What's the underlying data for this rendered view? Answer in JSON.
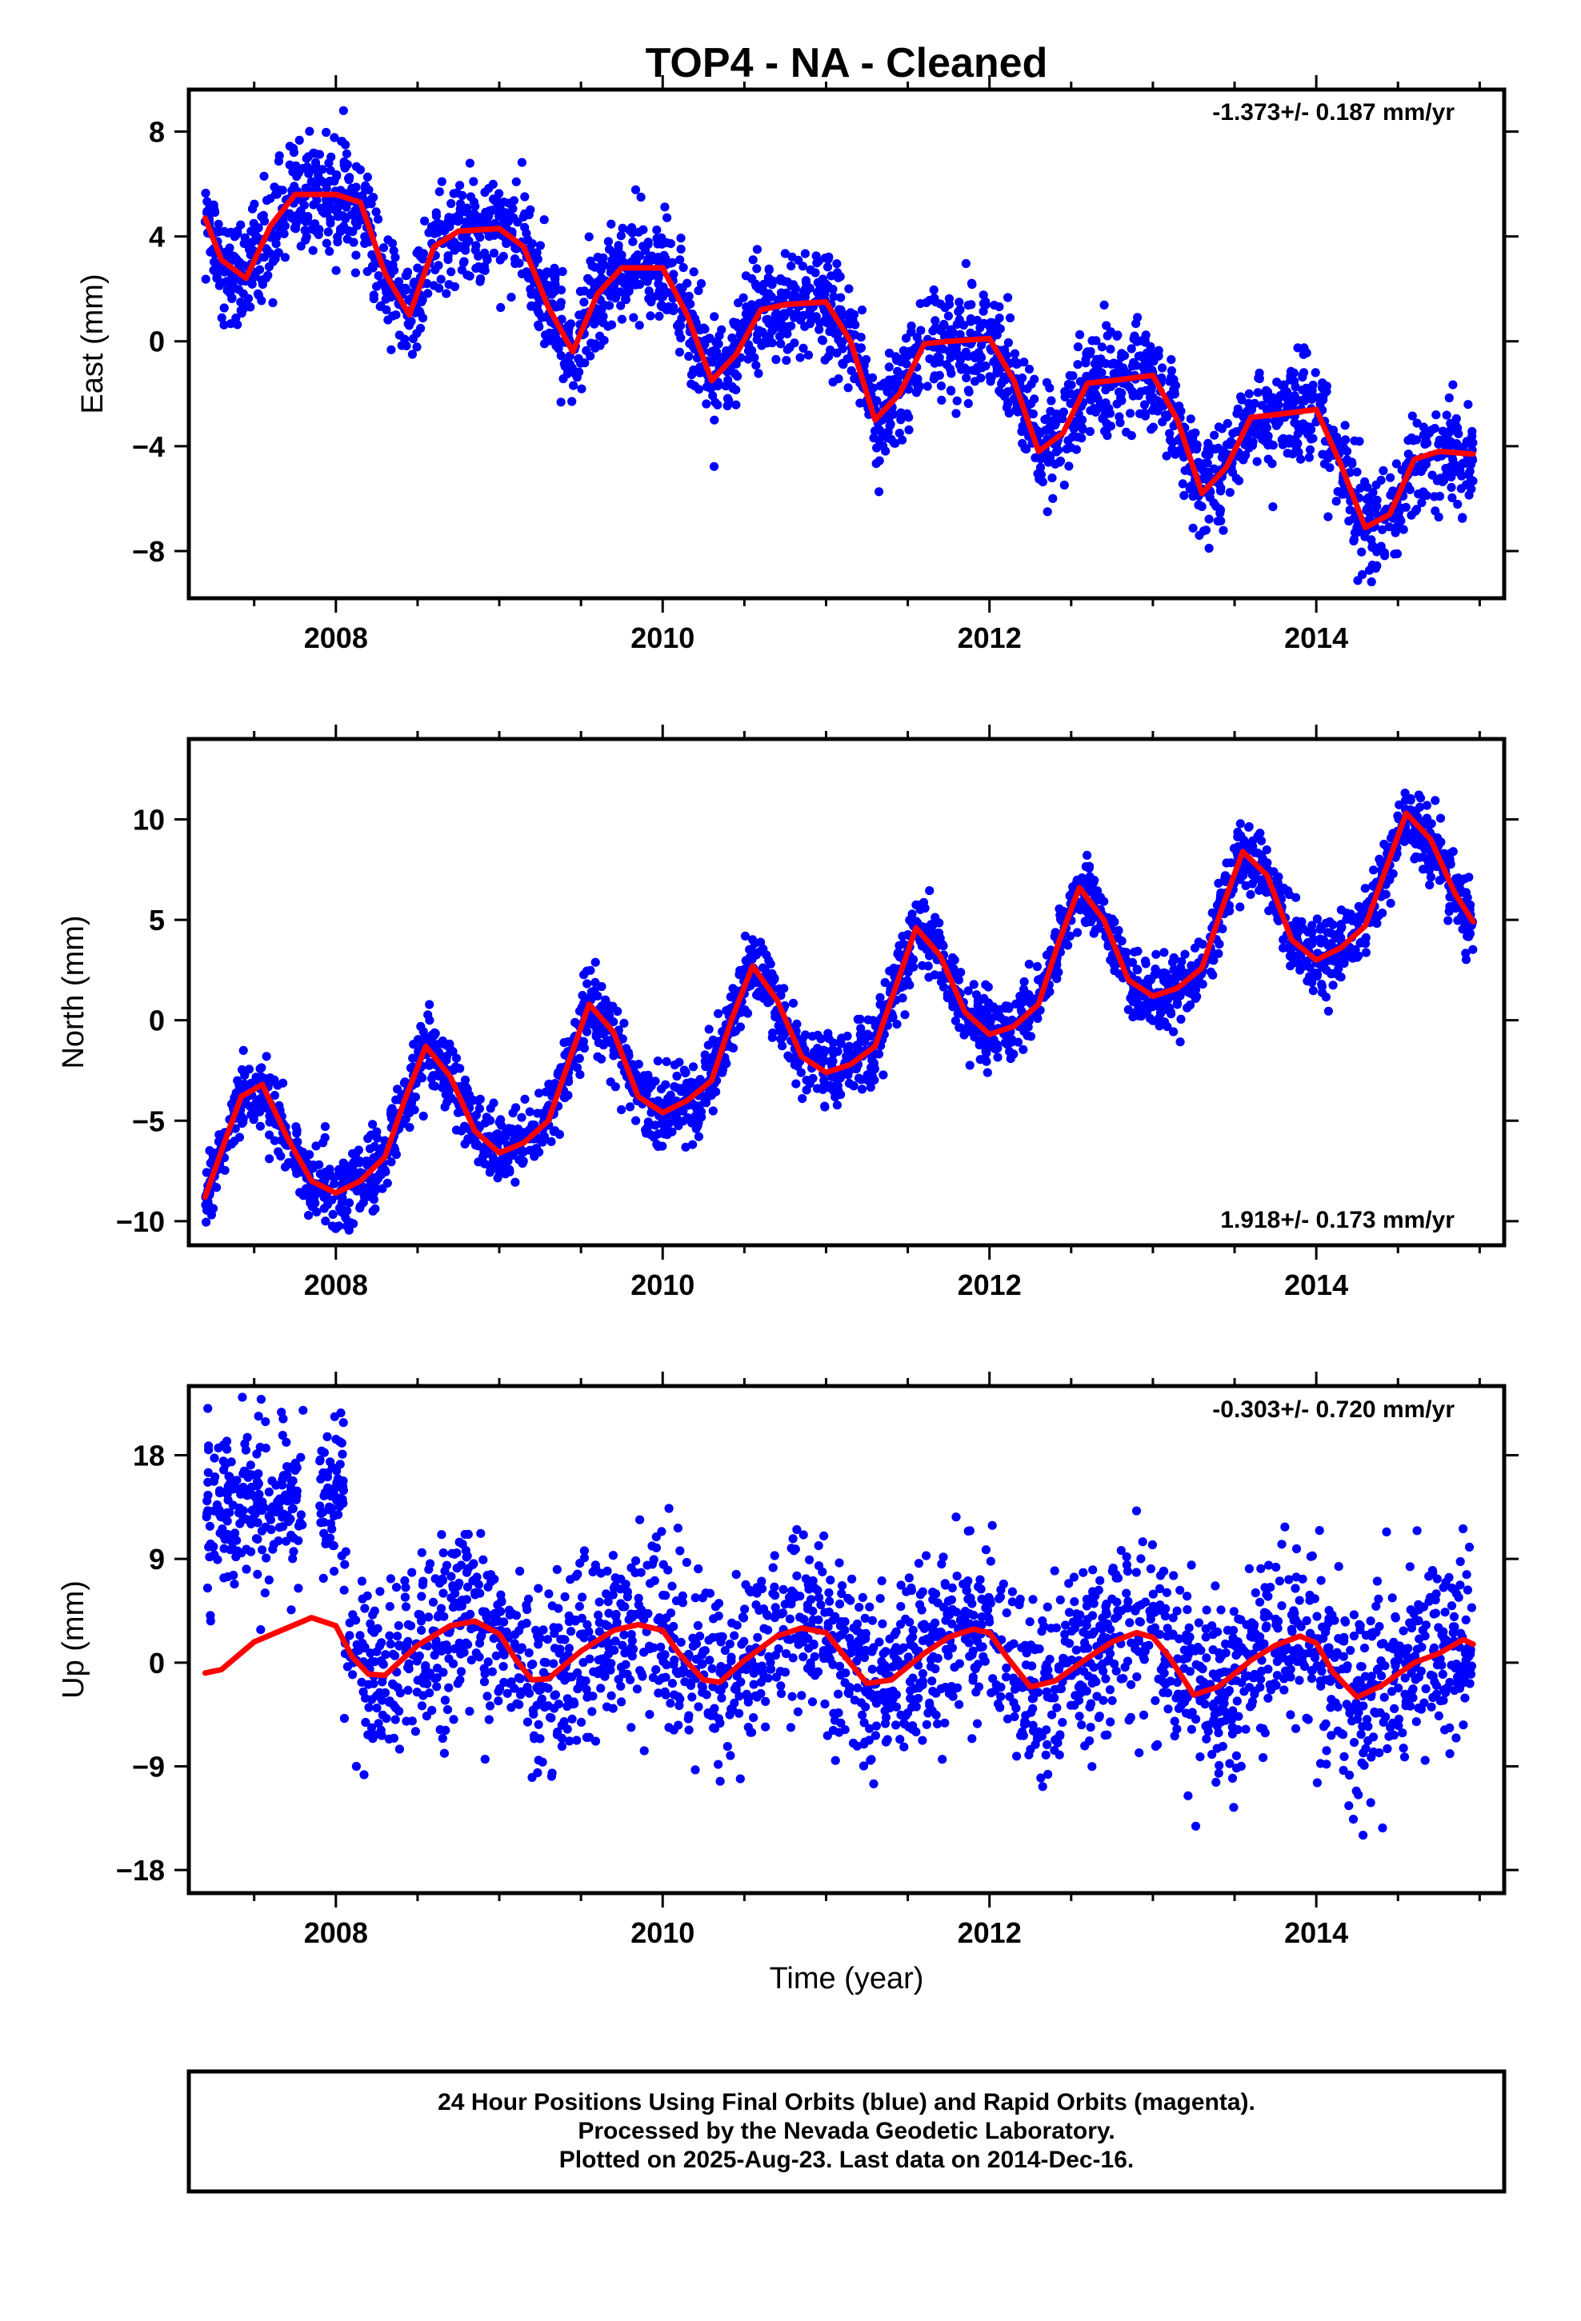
{
  "title": "TOP4  - NA - Cleaned",
  "colors": {
    "points": "#0000ff",
    "fit": "#ff0000",
    "axes": "#000000"
  },
  "footer": {
    "line1": "24 Hour Positions Using Final Orbits (blue) and Rapid Orbits (magenta).",
    "line2": "Processed by the Nevada Geodetic Laboratory.",
    "line3": "Plotted on 2025-Aug-23. Last data on 2014-Dec-16."
  },
  "chart_data": [
    {
      "type": "scatter",
      "title": "TOP4  - NA - Cleaned",
      "ylabel": "East (mm)",
      "xlabel": "",
      "rate_label": "-1.373+/- 0.187 mm/yr",
      "xlim": [
        2007.1,
        2015.15
      ],
      "ylim": [
        -9.8,
        9.6
      ],
      "xticks": [
        2008,
        2010,
        2012,
        2014
      ],
      "xtick_labels": [
        "2008",
        "2010",
        "2012",
        "2014"
      ],
      "yticks": [
        8,
        4,
        0,
        -4,
        -8
      ],
      "ytick_labels": [
        "8",
        "4",
        "0",
        "-4",
        "-8"
      ],
      "series": [
        {
          "kind": "points",
          "x_range": [
            2007.2,
            2014.96
          ],
          "trend_mm_per_yr": -1.373,
          "offset_mm_at_2007_2": 4.2,
          "seasonal_amplitude_mm": 1.6,
          "scatter_sd_mm": 1.0,
          "count": 2700
        },
        {
          "kind": "fit",
          "x": [
            2007.2,
            2007.3,
            2007.45,
            2007.6,
            2007.75,
            2008.0,
            2008.15,
            2008.3,
            2008.45,
            2008.6,
            2008.75,
            2009.0,
            2009.15,
            2009.3,
            2009.45,
            2009.6,
            2009.75,
            2010.0,
            2010.15,
            2010.3,
            2010.45,
            2010.6,
            2010.75,
            2011.0,
            2011.15,
            2011.3,
            2011.45,
            2011.6,
            2011.75,
            2012.0,
            2012.15,
            2012.3,
            2012.45,
            2012.6,
            2012.75,
            2013.0,
            2013.15,
            2013.3,
            2013.45,
            2013.6,
            2013.75,
            2014.0,
            2014.15,
            2014.3,
            2014.45,
            2014.6,
            2014.75,
            2014.96
          ],
          "y": [
            4.7,
            3.1,
            2.4,
            4.4,
            5.6,
            5.6,
            5.3,
            2.6,
            1.0,
            3.6,
            4.2,
            4.3,
            3.6,
            1.3,
            -0.4,
            1.8,
            2.8,
            2.8,
            1.0,
            -1.5,
            -0.5,
            1.2,
            1.4,
            1.5,
            0.0,
            -3.0,
            -2.0,
            -0.1,
            0.0,
            0.1,
            -1.5,
            -4.2,
            -3.5,
            -1.6,
            -1.5,
            -1.3,
            -3.0,
            -5.8,
            -4.8,
            -2.9,
            -2.8,
            -2.6,
            -4.7,
            -7.1,
            -6.6,
            -4.5,
            -4.2,
            -4.3
          ]
        }
      ]
    },
    {
      "type": "scatter",
      "title": "",
      "ylabel": "North (mm)",
      "xlabel": "",
      "rate_label": "1.918+/- 0.173 mm/yr",
      "xlim": [
        2007.1,
        2015.15
      ],
      "ylim": [
        -11.2,
        14.0
      ],
      "xticks": [
        2008,
        2010,
        2012,
        2014
      ],
      "xtick_labels": [
        "2008",
        "2010",
        "2012",
        "2014"
      ],
      "yticks": [
        10,
        5,
        0,
        -5,
        -10
      ],
      "ytick_labels": [
        "10",
        "5",
        "0",
        "-5",
        "-10"
      ],
      "series": [
        {
          "kind": "points",
          "x_range": [
            2007.2,
            2014.96
          ],
          "trend_mm_per_yr": 1.918,
          "offset_mm_at_2007_2": -6.0,
          "seasonal_amplitude_mm": 3.0,
          "scatter_sd_mm": 0.9,
          "count": 2700
        },
        {
          "kind": "fit",
          "x": [
            2007.2,
            2007.3,
            2007.42,
            2007.55,
            2007.7,
            2007.85,
            2008.0,
            2008.15,
            2008.3,
            2008.42,
            2008.55,
            2008.7,
            2008.85,
            2009.0,
            2009.15,
            2009.3,
            2009.42,
            2009.55,
            2009.7,
            2009.85,
            2010.0,
            2010.15,
            2010.3,
            2010.42,
            2010.55,
            2010.7,
            2010.85,
            2011.0,
            2011.15,
            2011.3,
            2011.42,
            2011.55,
            2011.7,
            2011.85,
            2012.0,
            2012.15,
            2012.3,
            2012.42,
            2012.55,
            2012.7,
            2012.85,
            2013.0,
            2013.15,
            2013.3,
            2013.42,
            2013.55,
            2013.7,
            2013.85,
            2014.0,
            2014.15,
            2014.3,
            2014.42,
            2014.55,
            2014.7,
            2014.85,
            2014.96
          ],
          "y": [
            -8.8,
            -6.5,
            -3.8,
            -3.2,
            -5.8,
            -8.0,
            -8.6,
            -8.0,
            -6.8,
            -4.0,
            -1.3,
            -2.8,
            -5.5,
            -6.6,
            -6.1,
            -5.0,
            -2.2,
            0.8,
            -0.6,
            -3.8,
            -4.6,
            -4.0,
            -3.0,
            0.0,
            2.7,
            1.0,
            -1.8,
            -2.6,
            -2.2,
            -1.3,
            1.5,
            4.6,
            3.2,
            0.4,
            -0.7,
            -0.3,
            0.8,
            3.8,
            6.6,
            5.0,
            2.0,
            1.2,
            1.6,
            2.6,
            5.5,
            8.4,
            7.2,
            4.0,
            3.0,
            3.6,
            4.7,
            7.4,
            10.3,
            9.0,
            6.3,
            4.9
          ]
        }
      ]
    },
    {
      "type": "scatter",
      "title": "",
      "ylabel": "Up (mm)",
      "xlabel": "Time (year)",
      "rate_label": "-0.303+/- 0.720 mm/yr",
      "xlim": [
        2007.1,
        2015.15
      ],
      "ylim": [
        -20.0,
        24.0
      ],
      "xticks": [
        2008,
        2010,
        2012,
        2014
      ],
      "xtick_labels": [
        "2008",
        "2010",
        "2012",
        "2014"
      ],
      "yticks": [
        18,
        9,
        0,
        -9,
        -18
      ],
      "ytick_labels": [
        "18",
        "9",
        "0",
        "-9",
        "-18"
      ],
      "series": [
        {
          "kind": "points",
          "x_range": [
            2007.2,
            2014.96
          ],
          "early_cluster": {
            "x_range": [
              2007.2,
              2007.8
            ],
            "mean_mm": 14,
            "sd_mm": 4
          },
          "early_cluster_2": {
            "x_range": [
              2007.9,
              2008.05
            ],
            "mean_mm": 14,
            "sd_mm": 4
          },
          "gap": [
            2007.8,
            2007.9
          ],
          "seasonal_amplitude_mm": 2.5,
          "scatter_sd_mm": 4.0,
          "count": 2500
        },
        {
          "kind": "fit",
          "x": [
            2007.2,
            2007.3,
            2007.5,
            2007.7,
            2007.85,
            2008.0,
            2008.1,
            2008.2,
            2008.3,
            2008.5,
            2008.7,
            2008.85,
            2009.0,
            2009.1,
            2009.2,
            2009.3,
            2009.5,
            2009.7,
            2009.85,
            2010.0,
            2010.1,
            2010.25,
            2010.35,
            2010.5,
            2010.7,
            2010.85,
            2011.0,
            2011.1,
            2011.25,
            2011.4,
            2011.6,
            2011.75,
            2011.9,
            2012.0,
            2012.1,
            2012.25,
            2012.4,
            2012.6,
            2012.75,
            2012.9,
            2013.0,
            2013.1,
            2013.25,
            2013.4,
            2013.6,
            2013.75,
            2013.9,
            2014.0,
            2014.1,
            2014.25,
            2014.4,
            2014.6,
            2014.75,
            2014.9,
            2014.96
          ],
          "y": [
            -0.9,
            -0.6,
            1.8,
            3.0,
            3.9,
            3.2,
            0.5,
            -1.0,
            -1.1,
            1.5,
            3.2,
            3.6,
            2.5,
            0.3,
            -1.5,
            -1.4,
            1.0,
            2.8,
            3.3,
            2.8,
            0.8,
            -1.5,
            -1.7,
            0.2,
            2.3,
            3.0,
            2.6,
            0.8,
            -1.8,
            -1.5,
            0.8,
            2.2,
            2.9,
            2.6,
            0.6,
            -2.1,
            -1.6,
            0.4,
            1.8,
            2.6,
            2.2,
            0.5,
            -2.8,
            -2.1,
            0.2,
            1.5,
            2.3,
            1.7,
            -0.8,
            -3.0,
            -2.0,
            0.0,
            0.8,
            2.0,
            1.6
          ]
        }
      ]
    }
  ]
}
